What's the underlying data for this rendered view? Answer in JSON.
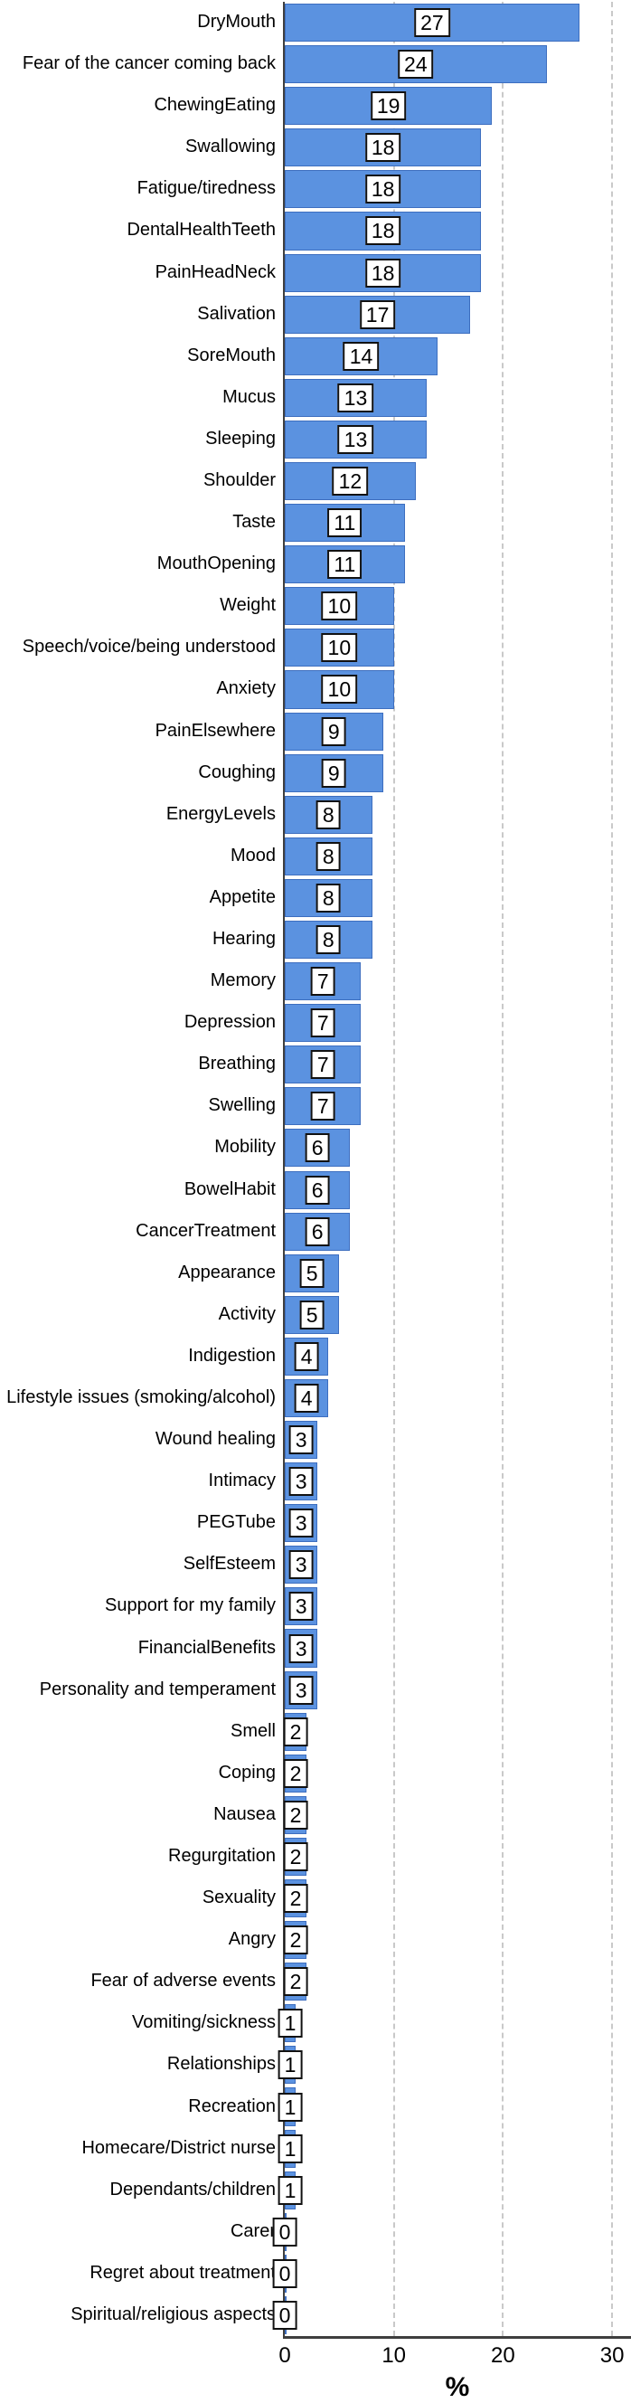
{
  "chart_data": {
    "type": "bar",
    "orientation": "horizontal",
    "title": "",
    "xlabel": "%",
    "xlim": [
      0,
      30
    ],
    "xticks": [
      0,
      10,
      20,
      30
    ],
    "grid": "dashed-vertical-at-10-20-30",
    "legend": "none",
    "value_labels": "boxed-at-bar-midpoint",
    "categories": [
      "DryMouth",
      "Fear of the cancer coming back",
      "ChewingEating",
      "Swallowing",
      "Fatigue/tiredness",
      "DentalHealthTeeth",
      "PainHeadNeck",
      "Salivation",
      "SoreMouth",
      "Mucus",
      "Sleeping",
      "Shoulder",
      "Taste",
      "MouthOpening",
      "Weight",
      "Speech/voice/being understood",
      "Anxiety",
      "PainElsewhere",
      "Coughing",
      "EnergyLevels",
      "Mood",
      "Appetite",
      "Hearing",
      "Memory",
      "Depression",
      "Breathing",
      "Swelling",
      "Mobility",
      "BowelHabit",
      "CancerTreatment",
      "Appearance",
      "Activity",
      "Indigestion",
      "Lifestyle issues (smoking/alcohol)",
      "Wound healing",
      "Intimacy",
      "PEGTube",
      "SelfEsteem",
      "Support for my family",
      "FinancialBenefits",
      "Personality and temperament",
      "Smell",
      "Coping",
      "Nausea",
      "Regurgitation",
      "Sexuality",
      "Angry",
      "Fear of adverse events",
      "Vomiting/sickness",
      "Relationships",
      "Recreation",
      "Homecare/District nurse",
      "Dependants/children",
      "Carer",
      "Regret about treatment",
      "Spiritual/religious aspects"
    ],
    "values": [
      27,
      24,
      19,
      18,
      18,
      18,
      18,
      17,
      14,
      13,
      13,
      12,
      11,
      11,
      10,
      10,
      10,
      9,
      9,
      8,
      8,
      8,
      8,
      7,
      7,
      7,
      7,
      6,
      6,
      6,
      5,
      5,
      4,
      4,
      3,
      3,
      3,
      3,
      3,
      3,
      3,
      2,
      2,
      2,
      2,
      2,
      2,
      2,
      1,
      1,
      1,
      1,
      1,
      0,
      0,
      0
    ],
    "colors": {
      "bar_fill": "#5b92e0",
      "bar_border": "#3d6ebf",
      "grid": "#c9c9c9",
      "axis": "#3f3f3f",
      "value_box_bg": "#ffffff",
      "value_box_border": "#111111",
      "text": "#000000"
    }
  }
}
